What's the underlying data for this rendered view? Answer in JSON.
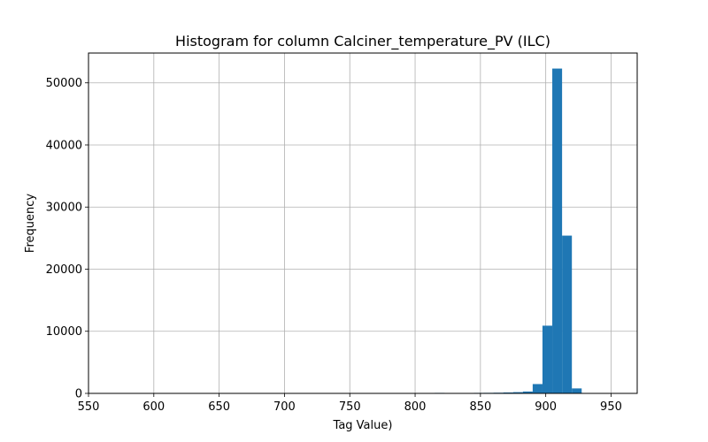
{
  "chart_data": {
    "type": "bar",
    "title": "Histogram for column Calciner_temperature_PV (ILC)",
    "xlabel": "Tag Value)",
    "ylabel": "Frequency",
    "xlim": [
      550,
      970
    ],
    "ylim": [
      0,
      54800
    ],
    "xticks": [
      550,
      600,
      650,
      700,
      750,
      800,
      850,
      900,
      950
    ],
    "yticks": [
      0,
      10000,
      20000,
      30000,
      40000,
      50000
    ],
    "grid": true,
    "bar_color": "#1f77b4",
    "bins": [
      {
        "x0": 815.0,
        "x1": 822.5,
        "count": 80
      },
      {
        "x0": 837.5,
        "x1": 845.0,
        "count": 60
      },
      {
        "x0": 845.0,
        "x1": 852.5,
        "count": 80
      },
      {
        "x0": 852.5,
        "x1": 860.0,
        "count": 90
      },
      {
        "x0": 860.0,
        "x1": 867.5,
        "count": 110
      },
      {
        "x0": 867.5,
        "x1": 875.0,
        "count": 150
      },
      {
        "x0": 875.0,
        "x1": 882.5,
        "count": 200
      },
      {
        "x0": 882.5,
        "x1": 890.0,
        "count": 300
      },
      {
        "x0": 890.0,
        "x1": 897.5,
        "count": 1500
      },
      {
        "x0": 897.5,
        "x1": 905.0,
        "count": 10900
      },
      {
        "x0": 905.0,
        "x1": 912.5,
        "count": 52300
      },
      {
        "x0": 912.5,
        "x1": 920.0,
        "count": 25400
      },
      {
        "x0": 920.0,
        "x1": 927.5,
        "count": 800
      }
    ]
  }
}
